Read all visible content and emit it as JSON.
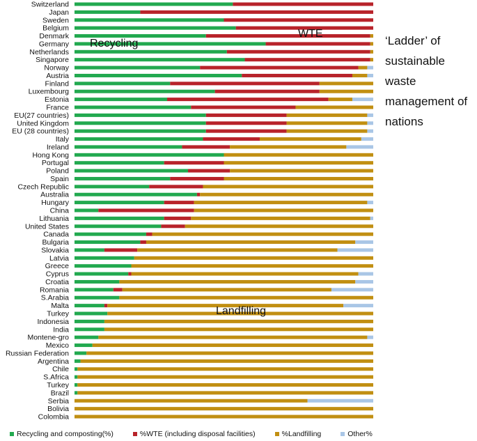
{
  "side_note": "‘Ladder’ of sustainable waste management of nations",
  "chart_data": {
    "type": "bar",
    "orientation": "horizontal",
    "stacked": true,
    "normalized_100": true,
    "xlim": [
      0,
      100
    ],
    "categories": [
      "Switzerland",
      "Japan",
      "Sweden",
      "Belgium",
      "Denmark",
      "Germany",
      "Netherlands",
      "Singapore",
      "Norway",
      "Austria",
      "Finland",
      "Luxembourg",
      "Estonia",
      "France",
      "EU(27 countries)",
      "United Kingdom",
      "EU (28 countries)",
      "Italy",
      "Ireland",
      "Hong Kong",
      "Portugal",
      "Poland",
      "Spain",
      "Czech Republic",
      "Australia",
      "Hungary",
      "China",
      "Lithuania",
      "United States",
      "Canada",
      "Bulgaria",
      "Slovakia",
      "Latvia",
      "Greece",
      "Cyprus",
      "Croatia",
      "Romania",
      "S.Arabia",
      "Malta",
      "Turkey",
      "Indonesia",
      "India",
      "Montene-gro",
      "Mexico",
      "Russian Federation",
      "Argentina",
      "Chile",
      "S.Africa",
      "Turkey",
      "Brazil",
      "Serbia",
      "Bolivia",
      "Colombia"
    ],
    "series": [
      {
        "name": "Recycling and composting(%)",
        "color": "#22a94f",
        "values": [
          53,
          22,
          50,
          54,
          44,
          64,
          51,
          57,
          42,
          56,
          32,
          47,
          31,
          39,
          44,
          44,
          44,
          43,
          36,
          50,
          30,
          38,
          32,
          25,
          41,
          30,
          8,
          30,
          29,
          24,
          22,
          10,
          20,
          19,
          18,
          15,
          13,
          15,
          10,
          11,
          10,
          10,
          8,
          6,
          4,
          2,
          1,
          1,
          1,
          1,
          0,
          0,
          0
        ]
      },
      {
        "name": "%WTE (including disposal facilities)",
        "color": "#b8232a",
        "values": [
          47,
          78,
          50,
          46,
          55,
          35,
          48,
          42,
          53,
          37,
          50,
          35,
          54,
          35,
          27,
          27,
          27,
          19,
          16,
          0,
          20,
          14,
          18,
          18,
          1,
          10,
          32,
          9,
          8,
          2,
          2,
          11,
          0,
          0,
          1,
          0,
          3,
          0,
          1,
          0,
          0,
          0,
          0,
          0,
          0,
          0,
          0,
          0,
          0,
          0,
          0,
          0,
          0
        ]
      },
      {
        "name": "%Landfilling",
        "color": "#c18f12",
        "values": [
          0,
          0,
          0,
          0,
          1,
          1,
          1,
          1,
          3,
          5,
          18,
          18,
          8,
          26,
          27,
          27,
          27,
          34,
          39,
          50,
          50,
          48,
          50,
          57,
          58,
          58,
          60,
          60,
          63,
          74,
          70,
          67,
          80,
          81,
          76,
          79,
          70,
          85,
          79,
          89,
          90,
          90,
          90,
          94,
          96,
          98,
          99,
          99,
          99,
          99,
          78,
          100,
          100
        ]
      },
      {
        "name": "Other%",
        "color": "#a9c6e6",
        "values": [
          0,
          0,
          0,
          0,
          0,
          0,
          0,
          0,
          2,
          2,
          0,
          0,
          7,
          0,
          2,
          2,
          2,
          4,
          9,
          0,
          0,
          0,
          0,
          0,
          0,
          2,
          0,
          1,
          0,
          0,
          6,
          12,
          0,
          0,
          5,
          6,
          14,
          0,
          10,
          0,
          0,
          0,
          2,
          0,
          0,
          0,
          0,
          0,
          0,
          0,
          22,
          0,
          0
        ]
      }
    ],
    "annotations": [
      "Recycling",
      "WTE",
      "Landfilling"
    ],
    "legend_position": "bottom",
    "grid": false
  }
}
